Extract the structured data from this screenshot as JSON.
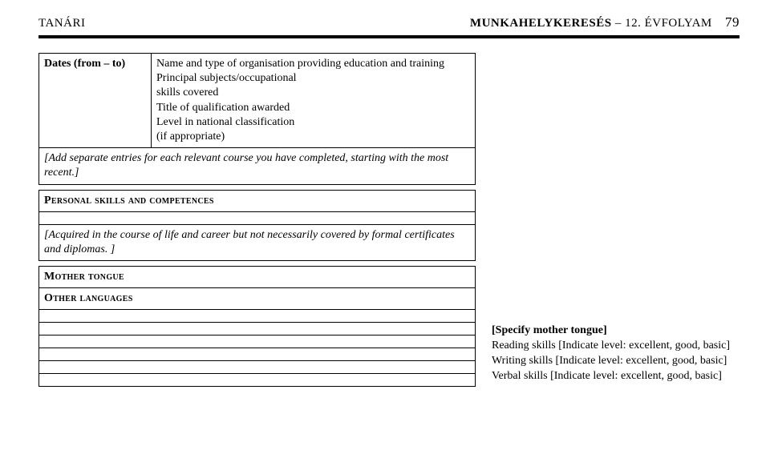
{
  "header": {
    "left": "TANÁRI",
    "right_bold": "MUNKAHELYKERESÉS",
    "right_thin": " – 12. ÉVFOLYAM",
    "page_number": "79"
  },
  "section1": {
    "left_label": "Dates (from – to)",
    "right_lines": "Name and type of organisation providing education and training\nPrincipal subjects/occupational\nskills covered\nTitle of qualification awarded\nLevel in national classification\n(if appropriate)",
    "note": "[Add separate entries for each relevant course you have completed, starting with the most recent.]"
  },
  "section2": {
    "heading": "Personal skills and competences",
    "note": "[Acquired in the course of life and career but not necessarily covered by formal certificates and diplomas. ]"
  },
  "section3": {
    "mother_label": "Mother tongue",
    "other_label": "Other languages"
  },
  "right_col": {
    "mother_value": "[Specify mother tongue]",
    "reading": "Reading skills [Indicate level: excellent, good, basic]",
    "writing": "Writing skills [Indicate level: excellent, good, basic]",
    "verbal": "Verbal skills [Indicate level: excellent, good, basic]"
  }
}
